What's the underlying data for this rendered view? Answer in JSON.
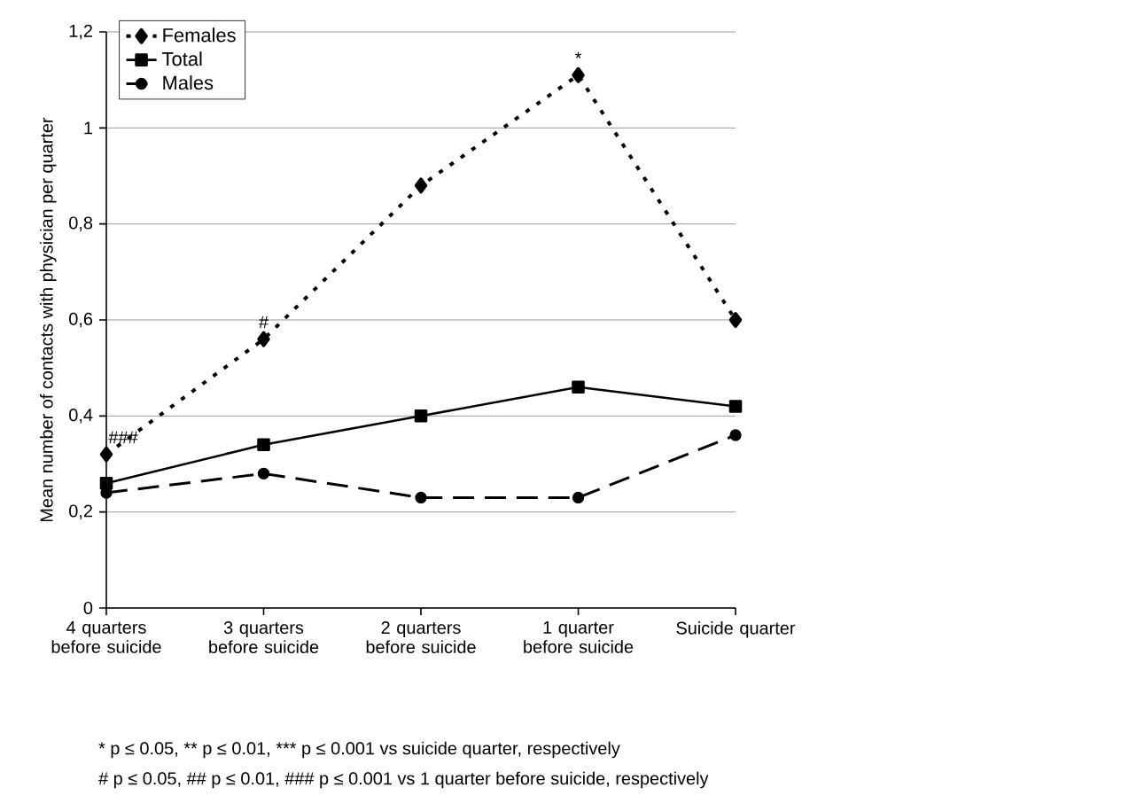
{
  "chart_data": {
    "type": "line",
    "ylabel": "Mean number of contacts with physician per quarter",
    "categories": [
      "4 quarters before suicide",
      "3 quarters before suicide",
      "2 quarters before suicide",
      "1 quarter before suicide",
      "Suicide quarter"
    ],
    "series": [
      {
        "name": "Females",
        "color": "#000000",
        "values": [
          0.32,
          0.56,
          0.88,
          1.11,
          0.6
        ],
        "marker": "diamond",
        "line_style": "dotted"
      },
      {
        "name": "Total",
        "color": "#000000",
        "values": [
          0.26,
          0.34,
          0.4,
          0.46,
          0.42
        ],
        "marker": "square",
        "line_style": "solid"
      },
      {
        "name": "Males",
        "color": "#000000",
        "values": [
          0.24,
          0.28,
          0.23,
          0.23,
          0.36
        ],
        "marker": "circle",
        "line_style": "dashed"
      }
    ],
    "ylim": [
      0,
      1.2
    ],
    "yticks": [
      0,
      {
        "value": 0.2,
        "label": "0,2"
      },
      {
        "value": 0.4,
        "label": "0,4"
      },
      {
        "value": 0.6,
        "label": "0,6"
      },
      {
        "value": 0.8,
        "label": "0,8"
      },
      1,
      {
        "value": 1.2,
        "label": "1,2"
      }
    ],
    "grid": "y",
    "legend": "top left",
    "annotations": [
      {
        "text": "###",
        "x": "4 quarters before suicide",
        "y": 0.32
      },
      {
        "text": "#",
        "x": "3 quarters before suicide",
        "y": 0.56
      },
      {
        "text": "*",
        "x": "1 quarter before suicide",
        "y": 1.11
      },
      "* p ≤ 0.05, ** p ≤ 0.01, *** p ≤ 0.001 vs suicide quarter, respectively",
      "# p ≤ 0.05, ## p ≤ 0.01, ### p ≤ 0.001 vs 1 quarter before suicide, respectively"
    ]
  }
}
